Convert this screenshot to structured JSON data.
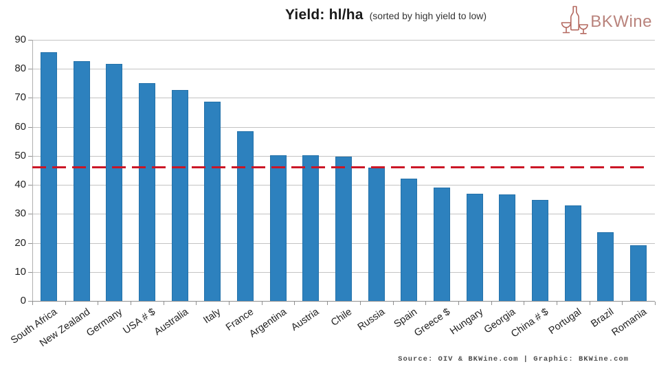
{
  "header": {
    "title": "Yield: hl/ha",
    "subtitle": "(sorted by high yield to low)",
    "logo_text": "BKWine",
    "logo_color": "#b4685f"
  },
  "chart_data": {
    "type": "bar",
    "title": "Yield: hl/ha",
    "subtitle": "(sorted by high yield to low)",
    "categories": [
      "South Africa",
      "New Zealand",
      "Germany",
      "USA # $",
      "Australia",
      "Italy",
      "France",
      "Argentina",
      "Austria",
      "Chile",
      "Russia",
      "Spain",
      "Greece $",
      "Hungary",
      "Georgia",
      "China # $",
      "Portugal",
      "Brazil",
      "Romania"
    ],
    "values": [
      85.7,
      82.7,
      81.8,
      75.0,
      72.8,
      68.6,
      58.5,
      50.3,
      50.1,
      49.8,
      46.0,
      42.1,
      39.0,
      37.0,
      36.8,
      34.8,
      33.0,
      23.8,
      19.2
    ],
    "bar_color": "#2d81be",
    "reference_line": {
      "value": 46,
      "style": "dashed",
      "color": "#cb1626"
    },
    "ylim": [
      0,
      90
    ],
    "ytick_step": 10,
    "yticks": [
      0,
      10,
      20,
      30,
      40,
      50,
      60,
      70,
      80,
      90
    ],
    "grid": "horizontal",
    "legend": "none",
    "xlabel": "",
    "ylabel": ""
  },
  "footer": {
    "source_text": "Source: OIV & BKWine.com | Graphic: BKWine.com"
  }
}
